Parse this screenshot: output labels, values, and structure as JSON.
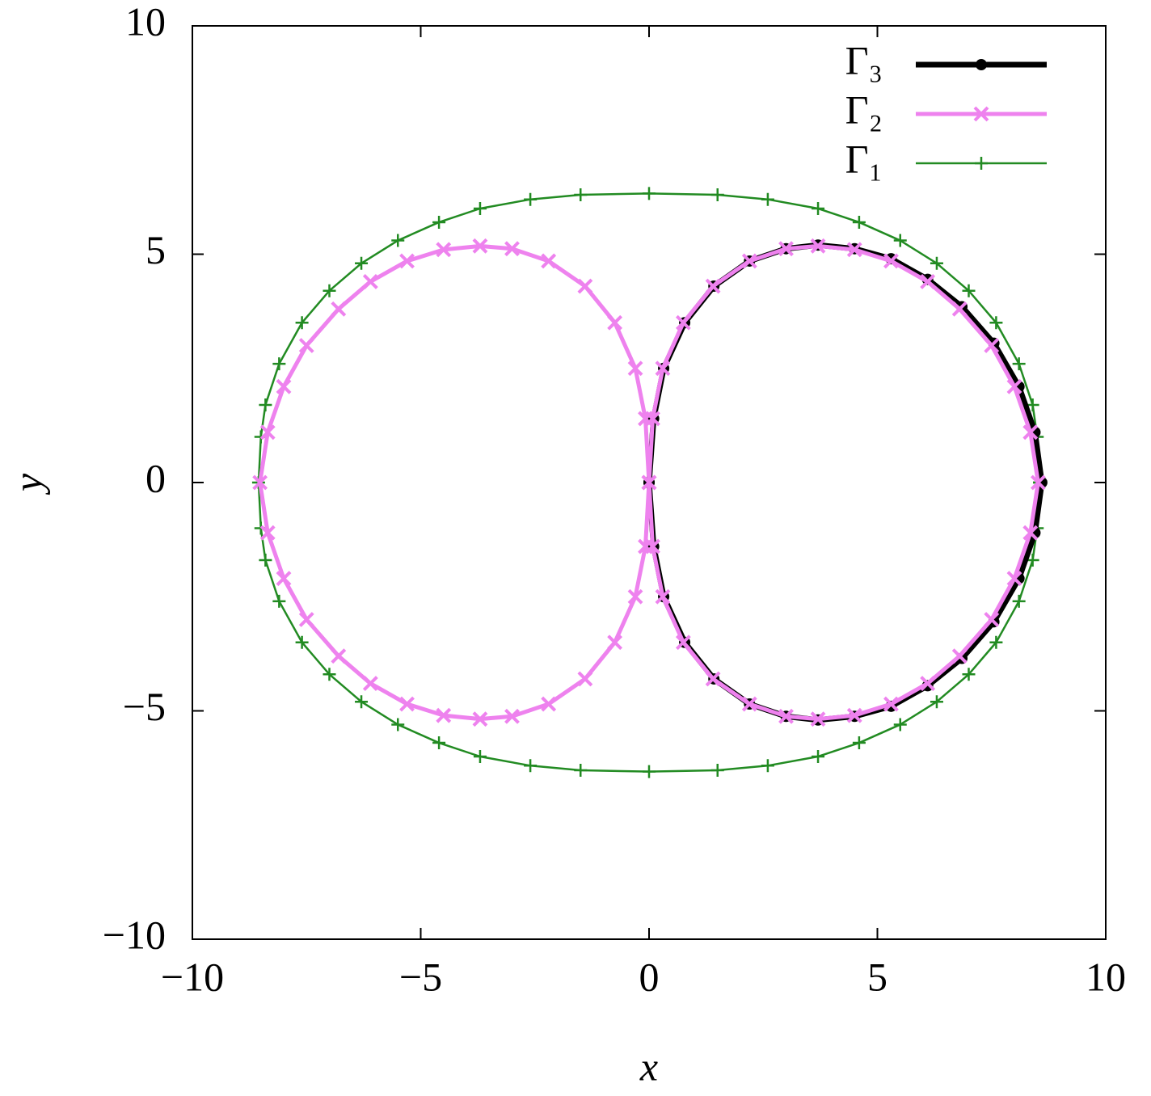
{
  "chart_data": {
    "type": "line",
    "xlabel": "x",
    "ylabel": "y",
    "xlim": [
      -10,
      10
    ],
    "ylim": [
      -10,
      10
    ],
    "xticks": [
      {
        "value": -10,
        "label": "−10"
      },
      {
        "value": -5,
        "label": "−5"
      },
      0,
      5,
      10
    ],
    "yticks": [
      {
        "value": -10,
        "label": "−10"
      },
      {
        "value": -5,
        "label": "−5"
      },
      0,
      5,
      10
    ],
    "legend": "top-right",
    "series": [
      {
        "name": "Γ₃",
        "color": "#000000",
        "marker": "circle",
        "x": [
          0,
          0.1,
          0.32,
          0.78,
          1.42,
          2.2,
          3.0,
          3.7,
          4.5,
          5.3,
          6.1,
          6.85,
          7.55,
          8.1,
          8.45,
          8.6,
          8.45,
          8.1,
          7.55,
          6.85,
          6.1,
          5.3,
          4.5,
          3.7,
          3.0,
          2.2,
          1.42,
          0.78,
          0.32,
          0.1,
          0
        ],
        "values": [
          0,
          1.4,
          2.5,
          3.5,
          4.3,
          4.85,
          5.12,
          5.2,
          5.12,
          4.9,
          4.45,
          3.85,
          3.05,
          2.1,
          1.1,
          0,
          -1.1,
          -2.1,
          -3.05,
          -3.85,
          -4.45,
          -4.9,
          -5.12,
          -5.2,
          -5.12,
          -4.85,
          -4.3,
          -3.5,
          -2.5,
          -1.4,
          0
        ]
      },
      {
        "name": "Γ₂",
        "color": "#ee82ee",
        "marker": "x",
        "x": [
          0,
          0.08,
          0.3,
          0.75,
          1.4,
          2.2,
          3.0,
          3.7,
          4.5,
          5.3,
          6.1,
          6.8,
          7.5,
          8.0,
          8.35,
          8.52,
          8.35,
          8.0,
          7.5,
          6.8,
          6.1,
          5.3,
          4.5,
          3.7,
          3.0,
          2.2,
          1.4,
          0.75,
          0.3,
          0.08,
          0,
          -0.08,
          -0.3,
          -0.75,
          -1.4,
          -2.2,
          -3.0,
          -3.7,
          -4.5,
          -5.3,
          -6.1,
          -6.8,
          -7.5,
          -8.0,
          -8.35,
          -8.52,
          -8.35,
          -8.0,
          -7.5,
          -6.8,
          -6.1,
          -5.3,
          -4.5,
          -3.7,
          -3.0,
          -2.2,
          -1.4,
          -0.75,
          -0.3,
          -0.08,
          0
        ],
        "values": [
          0,
          1.4,
          2.5,
          3.5,
          4.3,
          4.85,
          5.12,
          5.18,
          5.1,
          4.85,
          4.4,
          3.8,
          3.0,
          2.1,
          1.1,
          0,
          -1.1,
          -2.1,
          -3.0,
          -3.8,
          -4.4,
          -4.85,
          -5.1,
          -5.18,
          -5.12,
          -4.85,
          -4.3,
          -3.5,
          -2.5,
          -1.4,
          0,
          1.4,
          2.5,
          3.5,
          4.3,
          4.85,
          5.12,
          5.18,
          5.1,
          4.85,
          4.4,
          3.8,
          3.0,
          2.1,
          1.1,
          0,
          -1.1,
          -2.1,
          -3.0,
          -3.8,
          -4.4,
          -4.85,
          -5.1,
          -5.18,
          -5.12,
          -4.85,
          -4.3,
          -3.5,
          -2.5,
          -1.4,
          0
        ]
      },
      {
        "name": "Γ₁",
        "color": "#228b22",
        "marker": "plus",
        "x": [
          8.55,
          8.5,
          8.4,
          8.1,
          7.6,
          7.0,
          6.3,
          5.5,
          4.6,
          3.7,
          2.6,
          1.5,
          0,
          -1.5,
          -2.6,
          -3.7,
          -4.6,
          -5.5,
          -6.3,
          -7.0,
          -7.6,
          -8.1,
          -8.4,
          -8.5,
          -8.55,
          -8.5,
          -8.4,
          -8.1,
          -7.6,
          -7.0,
          -6.3,
          -5.5,
          -4.6,
          -3.7,
          -2.6,
          -1.5,
          0,
          1.5,
          2.6,
          3.7,
          4.6,
          5.5,
          6.3,
          7.0,
          7.6,
          8.1,
          8.4,
          8.5,
          8.55
        ],
        "values": [
          0,
          1.0,
          1.7,
          2.6,
          3.5,
          4.2,
          4.8,
          5.3,
          5.7,
          6.0,
          6.2,
          6.3,
          6.33,
          6.3,
          6.2,
          6.0,
          5.7,
          5.3,
          4.8,
          4.2,
          3.5,
          2.6,
          1.7,
          1.0,
          0,
          -1.0,
          -1.7,
          -2.6,
          -3.5,
          -4.2,
          -4.8,
          -5.3,
          -5.7,
          -6.0,
          -6.2,
          -6.3,
          -6.33,
          -6.3,
          -6.2,
          -6.0,
          -5.7,
          -5.3,
          -4.8,
          -4.2,
          -3.5,
          -2.6,
          -1.7,
          -1.0,
          0
        ]
      }
    ]
  }
}
